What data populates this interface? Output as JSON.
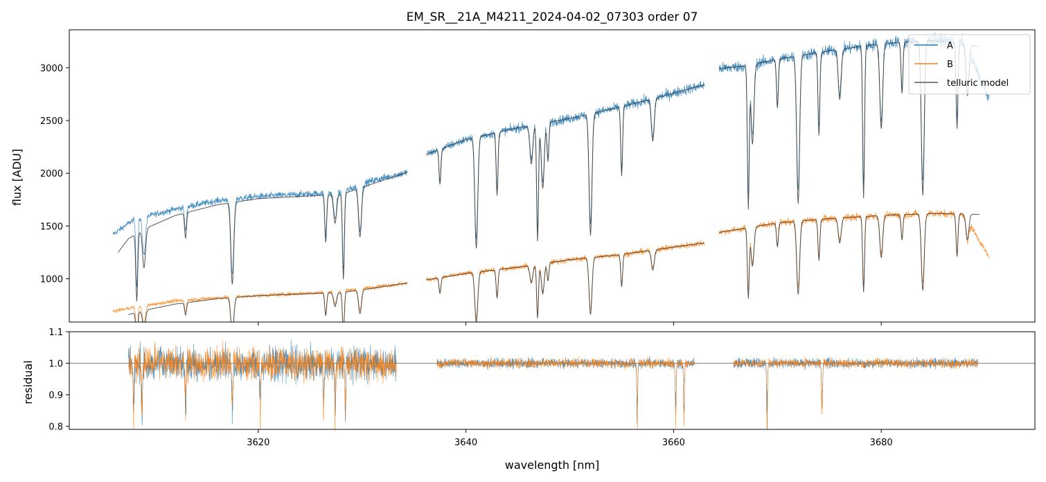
{
  "chart_data": [
    {
      "type": "line",
      "panel": "top",
      "title": "EM_SR__21A_M4211_2024-04-02_07303  order 07",
      "ylabel": "flux [ADU]",
      "xlim": [
        3601.8,
        3694.8
      ],
      "ylim": [
        590,
        3360
      ],
      "yticks": [
        1000,
        1500,
        2000,
        2500,
        3000
      ],
      "xticks": [
        3620,
        3640,
        3660,
        3680
      ],
      "legend": {
        "placement": "top-right",
        "entries": [
          {
            "label": "A",
            "color": "#1f77b4"
          },
          {
            "label": "B",
            "color": "#ff7f0e"
          },
          {
            "label": "telluric model",
            "color": "#555555"
          }
        ]
      },
      "segments": [
        [
          3606.0,
          3634.4
        ],
        [
          3636.2,
          3663.0
        ],
        [
          3664.4,
          3690.4
        ]
      ],
      "series": [
        {
          "name": "A",
          "color": "#1f77b4",
          "x": [
            3606.0,
            3608,
            3612,
            3616,
            3620,
            3624,
            3628,
            3631,
            3634.4,
            3636.2,
            3640,
            3645,
            3650,
            3655,
            3660,
            3663.0,
            3664.4,
            3667,
            3670,
            3675,
            3680,
            3685,
            3688,
            3690.4
          ],
          "y": [
            1420,
            1560,
            1660,
            1740,
            1780,
            1800,
            1820,
            1930,
            2010,
            2180,
            2320,
            2430,
            2520,
            2630,
            2760,
            2840,
            2990,
            3020,
            3080,
            3160,
            3230,
            3260,
            3250,
            2700
          ]
        },
        {
          "name": "B",
          "color": "#ff7f0e",
          "x": [
            3606.0,
            3608,
            3612,
            3616,
            3620,
            3624,
            3628,
            3631,
            3634.4,
            3636.2,
            3640,
            3645,
            3650,
            3655,
            3660,
            3663.0,
            3664.4,
            3667,
            3670,
            3675,
            3680,
            3685,
            3688,
            3690.4
          ],
          "y": [
            690,
            730,
            790,
            820,
            840,
            860,
            880,
            920,
            960,
            990,
            1050,
            1110,
            1180,
            1230,
            1300,
            1340,
            1440,
            1480,
            1530,
            1570,
            1600,
            1620,
            1610,
            1200
          ]
        },
        {
          "name": "telluric model A",
          "color": "#333333",
          "x": [
            3606.5,
            3607.5,
            3609,
            3612,
            3616,
            3620,
            3624,
            3628,
            3631,
            3634.4,
            3636.2,
            3640,
            3645,
            3650,
            3655,
            3660,
            3663.0,
            3664.4,
            3667,
            3670,
            3675,
            3680,
            3685,
            3689.5
          ],
          "y": [
            1250,
            1380,
            1470,
            1600,
            1700,
            1760,
            1780,
            1800,
            1900,
            2010,
            2180,
            2320,
            2430,
            2520,
            2630,
            2760,
            2840,
            2990,
            3020,
            3080,
            3160,
            3230,
            3260,
            3200
          ]
        },
        {
          "name": "telluric model B",
          "color": "#333333",
          "x": [
            3607.5,
            3609,
            3612,
            3616,
            3620,
            3624,
            3628,
            3631,
            3634.4,
            3636.2,
            3640,
            3645,
            3650,
            3655,
            3660,
            3663.0,
            3664.4,
            3667,
            3670,
            3675,
            3680,
            3685,
            3689.5
          ],
          "y": [
            660,
            700,
            760,
            810,
            840,
            855,
            870,
            910,
            960,
            990,
            1050,
            1110,
            1180,
            1230,
            1300,
            1340,
            1440,
            1480,
            1530,
            1570,
            1600,
            1620,
            1610
          ]
        }
      ],
      "absorption_lines": [
        3608.3,
        3609.0,
        3613.0,
        3617.5,
        3626.5,
        3627.4,
        3628.2,
        3629.8,
        3637.5,
        3641,
        3643,
        3646.3,
        3646.9,
        3647.4,
        3647.9,
        3652,
        3655,
        3658,
        3667.2,
        3667.6,
        3670,
        3672,
        3674,
        3676,
        3678.3,
        3680,
        3682,
        3684,
        3687.3,
        3688.3
      ]
    },
    {
      "type": "line",
      "panel": "bottom",
      "ylabel": "residual",
      "xlabel": "wavelength [nm]",
      "xlim": [
        3601.8,
        3694.8
      ],
      "ylim": [
        0.79,
        1.1
      ],
      "yticks": [
        "0.8",
        "0.9",
        "1.0",
        "1.1"
      ],
      "xticks": [
        "3620",
        "3640",
        "3660",
        "3680"
      ],
      "reference_line": 1.0,
      "segments": [
        [
          3607.5,
          3633.3
        ],
        [
          3637.2,
          3662.0
        ],
        [
          3665.8,
          3689.3
        ]
      ],
      "series": [
        {
          "name": "A",
          "color": "#1f77b4",
          "noise": [
            0.05,
            0.015,
            0.015
          ]
        },
        {
          "name": "B",
          "color": "#ff7f0e",
          "noise": [
            0.05,
            0.015,
            0.015
          ]
        }
      ],
      "dips": [
        3608.0,
        3608.8,
        3613.0,
        3617.5,
        3620.2,
        3626.3,
        3627.4,
        3628.4,
        3656.5,
        3660.2,
        3661.0,
        3669.0,
        3674.3
      ]
    }
  ]
}
